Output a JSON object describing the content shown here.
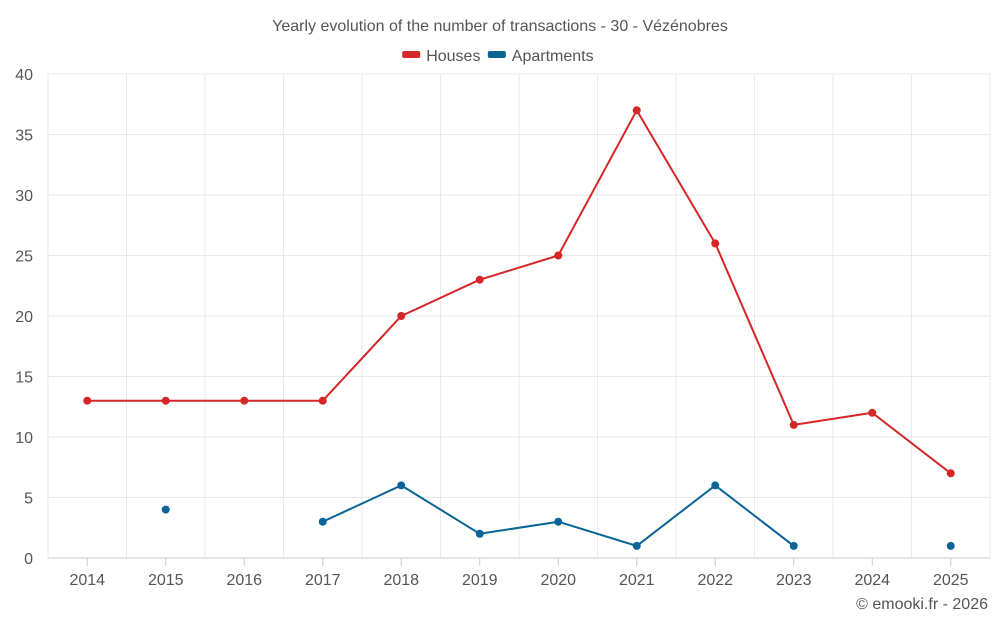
{
  "chart_data": {
    "type": "line",
    "title": "Yearly evolution of the number of transactions - 30 - Vézénobres",
    "categories": [
      "2014",
      "2015",
      "2016",
      "2017",
      "2018",
      "2019",
      "2020",
      "2021",
      "2022",
      "2023",
      "2024",
      "2025"
    ],
    "ylim": [
      0,
      40
    ],
    "yticks": [
      0,
      5,
      10,
      15,
      20,
      25,
      30,
      35,
      40
    ],
    "grid": true,
    "legend_position": "top-center",
    "series": [
      {
        "name": "Houses",
        "color": "#d62728",
        "values": [
          13,
          13,
          13,
          13,
          20,
          23,
          25,
          37,
          26,
          11,
          12,
          7
        ]
      },
      {
        "name": "Apartments",
        "color": "#0a6496",
        "values": [
          null,
          4,
          null,
          3,
          6,
          2,
          3,
          1,
          6,
          1,
          null,
          1
        ]
      }
    ]
  },
  "credit": "© emooki.fr - 2026"
}
